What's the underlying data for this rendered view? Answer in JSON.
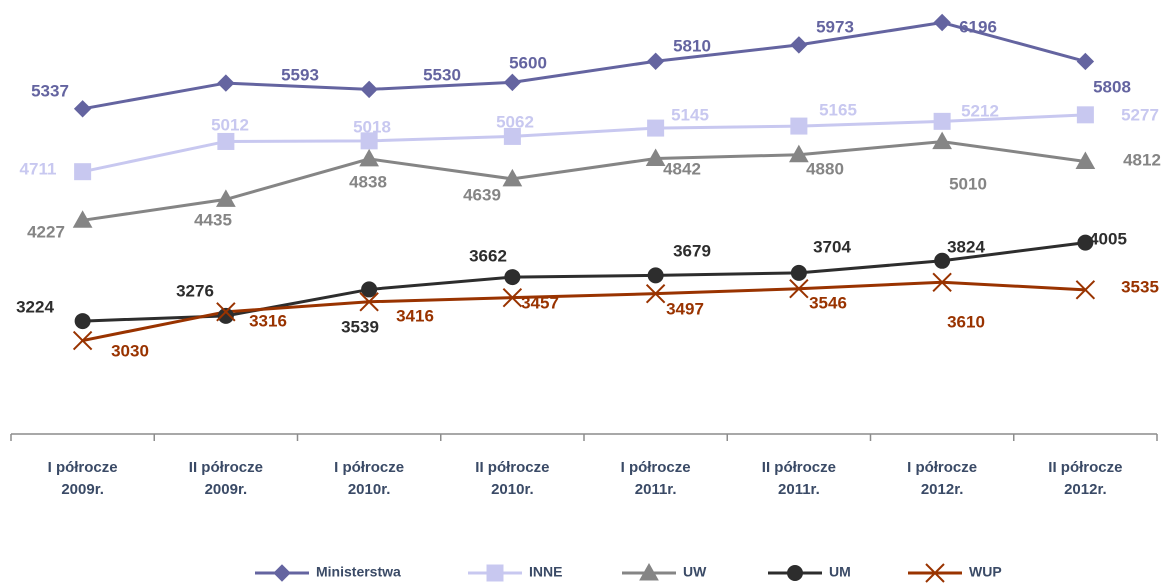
{
  "chart_data": {
    "type": "line",
    "categories": [
      "I półrocze\n2009r.",
      "II półrocze\n2009r.",
      "I półrocze\n2010r.",
      "II półrocze\n2010r.",
      "I półrocze\n2011r.",
      "II półrocze\n2011r.",
      "I półrocze\n2012r.",
      "II półrocze\n2012r."
    ],
    "series": [
      {
        "name": "Ministerstwa",
        "color": "#6464a0",
        "marker": "diamond",
        "values": [
          5337,
          5593,
          5530,
          5600,
          5810,
          5973,
          6196,
          5808
        ]
      },
      {
        "name": "INNE",
        "color": "#c8c8f0",
        "marker": "square",
        "values": [
          4711,
          5012,
          5018,
          5062,
          5145,
          5165,
          5212,
          5277
        ]
      },
      {
        "name": "UW",
        "color": "#858585",
        "marker": "triangle",
        "values": [
          4227,
          4435,
          4838,
          4639,
          4842,
          4880,
          5010,
          4812
        ]
      },
      {
        "name": "UM",
        "color": "#2d2d2d",
        "marker": "circle",
        "values": [
          3224,
          3276,
          3539,
          3662,
          3679,
          3704,
          3824,
          4005
        ]
      },
      {
        "name": "WUP",
        "color": "#993300",
        "marker": "x",
        "values": [
          3030,
          3316,
          3416,
          3457,
          3497,
          3546,
          3610,
          3535
        ]
      }
    ],
    "ylim": [
      2100,
      6400
    ],
    "yticks": [],
    "grid": false,
    "legend": "bottom"
  }
}
